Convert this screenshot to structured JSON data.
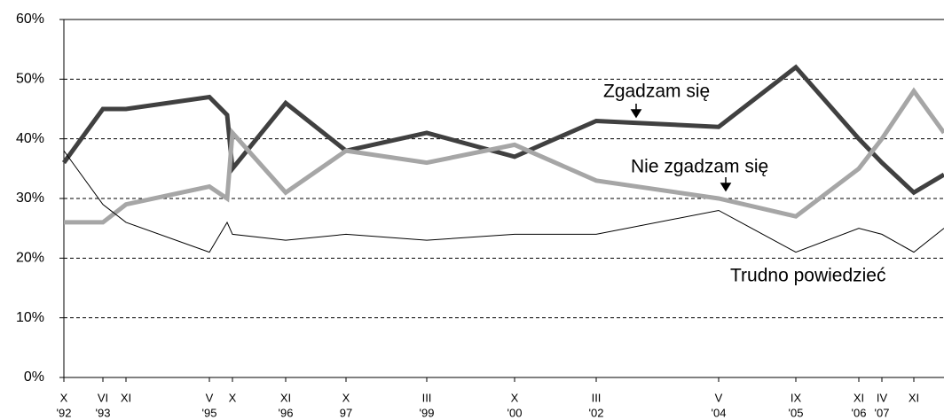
{
  "chart_data": {
    "type": "line",
    "categories": [
      "X",
      "VI",
      "XI",
      "V",
      null,
      "X",
      "XI",
      "X",
      "III",
      "X",
      "III",
      "V",
      "IX",
      "XI",
      "IV",
      "XI",
      null
    ],
    "category_years": [
      "'92",
      "'93",
      null,
      "'95",
      null,
      null,
      "'96",
      "97",
      "'99",
      "'00",
      "'02",
      "'04",
      "'05",
      "'06",
      "'07",
      null,
      null
    ],
    "series": [
      {
        "name": "Zgadzam się",
        "color": "#404040",
        "values": [
          36,
          45,
          45,
          47,
          44,
          35,
          46,
          38,
          41,
          37,
          43,
          42,
          52,
          40,
          36,
          31,
          34
        ]
      },
      {
        "name": "Nie zgadzam się",
        "color": "#a6a6a6",
        "values": [
          26,
          26,
          29,
          32,
          30,
          41,
          31,
          38,
          36,
          39,
          33,
          30,
          27,
          35,
          40,
          48,
          41
        ]
      },
      {
        "name": "Trudno powiedzieć",
        "color": "#000000",
        "values": [
          38,
          29,
          26,
          21,
          26,
          24,
          23,
          24,
          23,
          24,
          24,
          28,
          21,
          25,
          24,
          21,
          25
        ]
      }
    ],
    "ylim": [
      0,
      60
    ],
    "yticks": [
      {
        "value": 0,
        "label": "0%"
      },
      {
        "value": 10,
        "label": "10%"
      },
      {
        "value": 20,
        "label": "20%"
      },
      {
        "value": 30,
        "label": "30%"
      },
      {
        "value": 40,
        "label": "40%"
      },
      {
        "value": 50,
        "label": "50%"
      },
      {
        "value": 60,
        "label": "60%"
      }
    ],
    "grid": true
  }
}
